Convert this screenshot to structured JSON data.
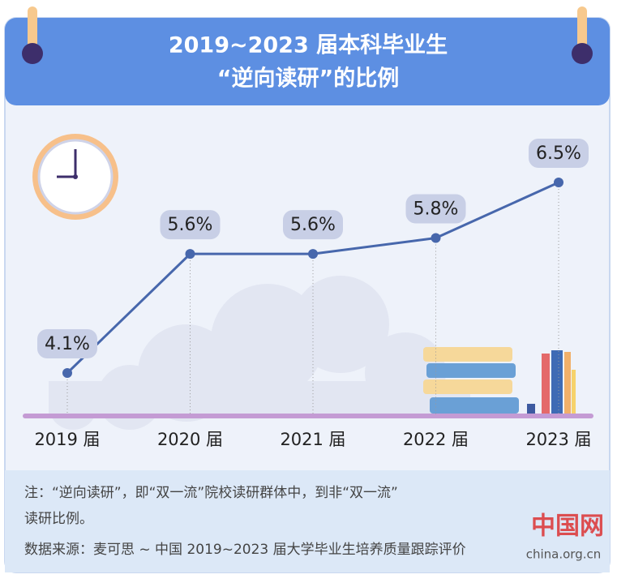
{
  "chart_data": {
    "type": "line",
    "title": "2019~2023 届本科毕业生",
    "subtitle": "“逆向读研”的比例",
    "categories": [
      "2019 届",
      "2020 届",
      "2021 届",
      "2022 届",
      "2023 届"
    ],
    "series": [
      {
        "color": "#4767ac",
        "values": [
          4.1,
          5.6,
          5.6,
          5.8,
          6.5
        ],
        "value_labels": [
          "4.1%",
          "5.6%",
          "5.6%",
          "5.8%",
          "6.5%"
        ]
      }
    ],
    "note_lines": [
      "注：“逆向读研”，即“双一流”院校读研群体中，到非“双一流”",
      "读研比例。"
    ],
    "source": "数据来源：麦可思 ~ 中国 2019~2023 届大学毕业生培养质量跟踪评价",
    "watermark": [
      "中国网",
      "china.org.cn"
    ]
  }
}
